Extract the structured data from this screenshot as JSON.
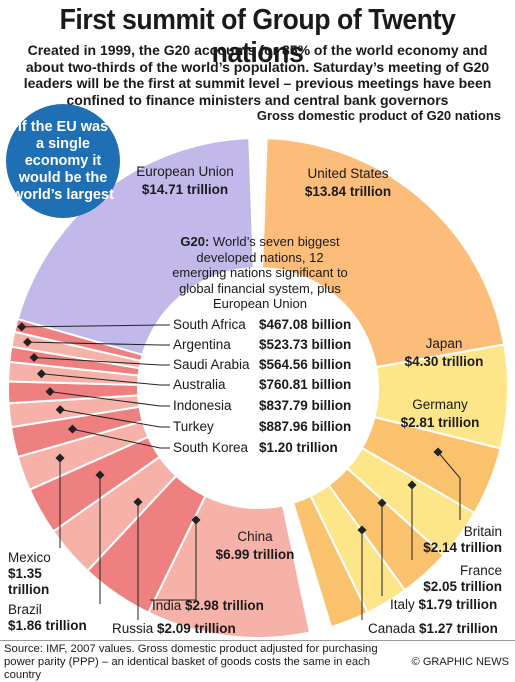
{
  "title": "First summit of Group of Twenty nations",
  "subtitle": "Created in 1999, the G20 accounts for 85% of the world economy and about two-thirds of the world’s population. Saturday’s meeting of G20 leaders will be the first at summit level – previous meetings have been confined to finance ministers and central bank governors",
  "callout": "If the EU was a single economy it would be the world’s largest",
  "gdp_heading": "Gross domestic product of G20 nations",
  "center_label": "G20:",
  "center_text": " World’s seven biggest developed nations, 12 emerging nations significant to global financial system, plus European Union",
  "source": "Source: IMF, 2007 values. Gross domestic product adjusted for purchasing power parity (PPP) – an identical basket of goods costs the same in each country",
  "credit": "© GRAPHIC NEWS",
  "colors": {
    "eu": "#c3b8ea",
    "us": "#fcbc7a",
    "yellow": "#fde58a",
    "orange": "#fbc26e",
    "red_dark": "#ef8080",
    "red_light": "#f6b2a8",
    "callout": "#1f6fb4"
  },
  "chart_data": {
    "type": "pie",
    "unit": "trillion",
    "segments": [
      {
        "name": "European Union",
        "value_label": "$14.71 trillion",
        "value": 14.71
      },
      {
        "name": "United States",
        "value_label": "$13.84 trillion",
        "value": 13.84
      },
      {
        "name": "Japan",
        "value_label": "$4.30 trillion",
        "value": 4.3
      },
      {
        "name": "Germany",
        "value_label": "$2.81 trillion",
        "value": 2.81
      },
      {
        "name": "Britain",
        "value_label": "$2.14 trillion",
        "value": 2.14
      },
      {
        "name": "France",
        "value_label": "$2.05 trillion",
        "value": 2.05
      },
      {
        "name": "Italy",
        "value_label": "$1.79 trillion",
        "value": 1.79
      },
      {
        "name": "Canada",
        "value_label": "$1.27 trillion",
        "value": 1.27
      },
      {
        "name": "China",
        "value_label": "$6.99 trillion",
        "value": 6.99
      },
      {
        "name": "India",
        "value_label": "$2.98 trillion",
        "value": 2.98
      },
      {
        "name": "Russia",
        "value_label": "$2.09 trillion",
        "value": 2.09
      },
      {
        "name": "Brazil",
        "value_label": "$1.86 trillion",
        "value": 1.86
      },
      {
        "name": "Mexico",
        "value_label": "$1.35 trillion",
        "value": 1.35
      },
      {
        "name": "South Korea",
        "value_label": "$1.20 trillion",
        "value": 1.2
      },
      {
        "name": "Turkey",
        "value_label": "$887.96 billion",
        "value": 0.88796
      },
      {
        "name": "Indonesia",
        "value_label": "$837.79 billion",
        "value": 0.83779
      },
      {
        "name": "Australia",
        "value_label": "$760.81 billion",
        "value": 0.76081
      },
      {
        "name": "Saudi Arabia",
        "value_label": "$564.56 billion",
        "value": 0.56456
      },
      {
        "name": "Argentina",
        "value_label": "$523.73 billion",
        "value": 0.52373
      },
      {
        "name": "South Africa",
        "value_label": "$467.08 billion",
        "value": 0.46708
      }
    ]
  }
}
